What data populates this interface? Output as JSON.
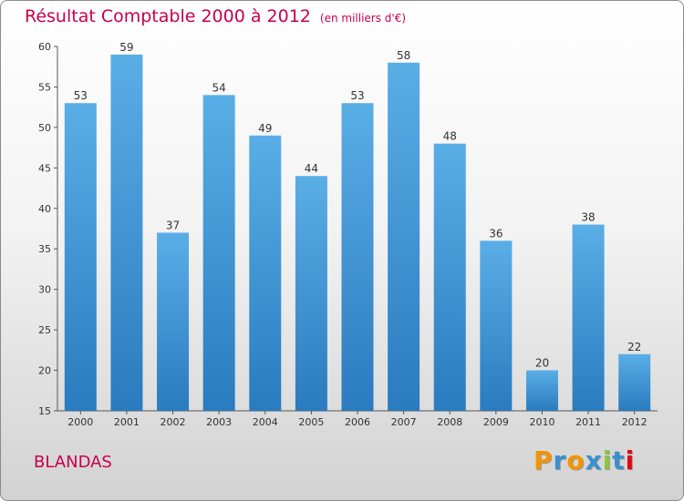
{
  "header": {
    "title": "Résultat Comptable 2000 à 2012",
    "subtitle": "(en milliers d'€)"
  },
  "footer": {
    "town": "BLANDAS",
    "logo_text": "Proxiti"
  },
  "colors": {
    "title": "#c8004c",
    "bar_top": "#5aaee6",
    "bar_bottom": "#2a7bbf",
    "logo_letters": [
      "#f29400",
      "#3a8fd0",
      "#f29400",
      "#3a8fd0",
      "#8cc63f",
      "#3a8fd0",
      "#e30613"
    ]
  },
  "chart_data": {
    "type": "bar",
    "title": "Résultat Comptable 2000 à 2012",
    "subtitle": "(en milliers d'€)",
    "xlabel": "",
    "ylabel": "",
    "categories": [
      "2000",
      "2001",
      "2002",
      "2003",
      "2004",
      "2005",
      "2006",
      "2007",
      "2008",
      "2009",
      "2010",
      "2011",
      "2012"
    ],
    "values": [
      53,
      59,
      37,
      54,
      49,
      44,
      53,
      58,
      48,
      36,
      20,
      38,
      22
    ],
    "ylim": [
      15,
      60
    ],
    "yticks": [
      15,
      20,
      25,
      30,
      35,
      40,
      45,
      50,
      55,
      60
    ],
    "grid": false
  }
}
